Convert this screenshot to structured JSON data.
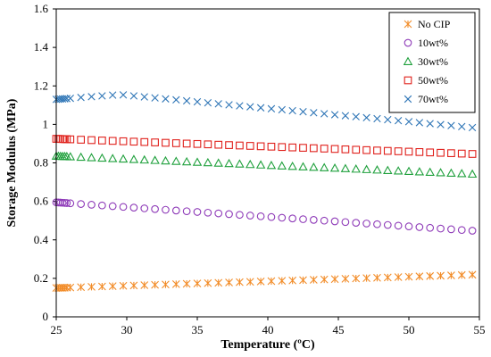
{
  "chart_data": {
    "type": "scatter",
    "xlabel": "Temperature (ºC)",
    "ylabel": "Storage Modulus (MPa)",
    "xlim": [
      25,
      55
    ],
    "ylim": [
      0,
      1.6
    ],
    "xticks": [
      25,
      30,
      35,
      40,
      45,
      50,
      55
    ],
    "yticks": [
      0,
      0.2,
      0.4,
      0.6,
      0.8,
      1,
      1.2,
      1.4,
      1.6
    ],
    "xtick_labels": [
      "25",
      "30",
      "35",
      "40",
      "45",
      "50",
      "55"
    ],
    "ytick_labels": [
      "0",
      "0.2",
      "0.4",
      "0.6",
      "0.8",
      "1",
      "1.2",
      "1.4",
      "1.6"
    ],
    "grid": false,
    "legend_position": "top-right",
    "series": [
      {
        "name": "No CIP",
        "color": "#F28C28",
        "marker": "asterisk",
        "start": 0.15,
        "end": 0.22
      },
      {
        "name": "10wt%",
        "color": "#8E3AB8",
        "marker": "circle",
        "start": 0.595,
        "end": 0.445
      },
      {
        "name": "30wt%",
        "color": "#1FA03C",
        "marker": "triangle",
        "start": 0.835,
        "end": 0.74
      },
      {
        "name": "50wt%",
        "color": "#E0201B",
        "marker": "square",
        "start": 0.925,
        "end": 0.845
      },
      {
        "name": "70wt%",
        "color": "#2E75B6",
        "marker": "x",
        "start": 1.13,
        "peak_x": 29.5,
        "peak": 1.155,
        "end": 0.98
      }
    ]
  }
}
